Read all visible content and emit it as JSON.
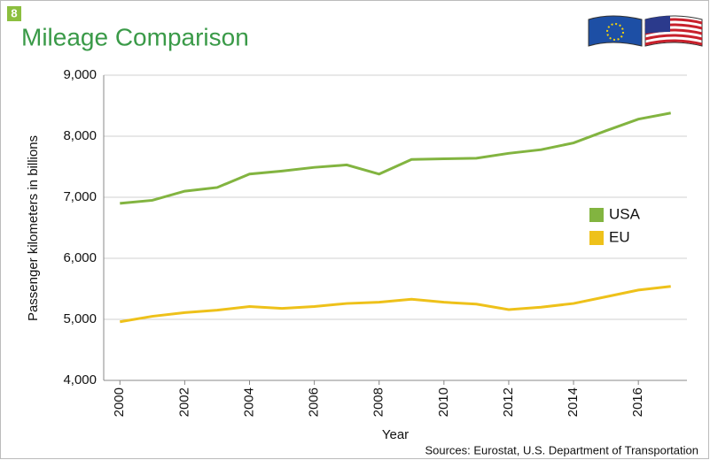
{
  "badge": "8",
  "chart_data": {
    "type": "line",
    "title": "Mileage Comparison",
    "y_label": "Passenger kilometers in billions",
    "x_label": "Year",
    "source": "Sources: Eurostat, U.S. Department of Transportation",
    "x": [
      2000,
      2001,
      2002,
      2003,
      2004,
      2005,
      2006,
      2007,
      2008,
      2009,
      2010,
      2011,
      2012,
      2013,
      2014,
      2015,
      2016,
      2017
    ],
    "series": [
      {
        "name": "USA",
        "color": "#82b440",
        "values": [
          6900,
          6950,
          7100,
          7160,
          7380,
          7430,
          7490,
          7530,
          7380,
          7620,
          7630,
          7640,
          7720,
          7780,
          7890,
          8090,
          8280,
          8380
        ]
      },
      {
        "name": "EU",
        "color": "#eec11a",
        "values": [
          4960,
          5050,
          5110,
          5150,
          5210,
          5180,
          5210,
          5260,
          5280,
          5330,
          5280,
          5250,
          5160,
          5200,
          5260,
          5370,
          5480,
          5540
        ]
      }
    ],
    "xlim": [
      1999.5,
      2017.5
    ],
    "xticks": [
      2000,
      2002,
      2004,
      2006,
      2008,
      2010,
      2012,
      2014,
      2016
    ],
    "ylim": [
      4000,
      9000
    ],
    "yticks": [
      {
        "value": 4000,
        "label": "4,000"
      },
      {
        "value": 5000,
        "label": "5,000"
      },
      {
        "value": 6000,
        "label": "6,000"
      },
      {
        "value": 7000,
        "label": "7,000"
      },
      {
        "value": 8000,
        "label": "8,000"
      },
      {
        "value": 9000,
        "label": "9,000"
      }
    ],
    "grid": true,
    "legend": "right"
  }
}
